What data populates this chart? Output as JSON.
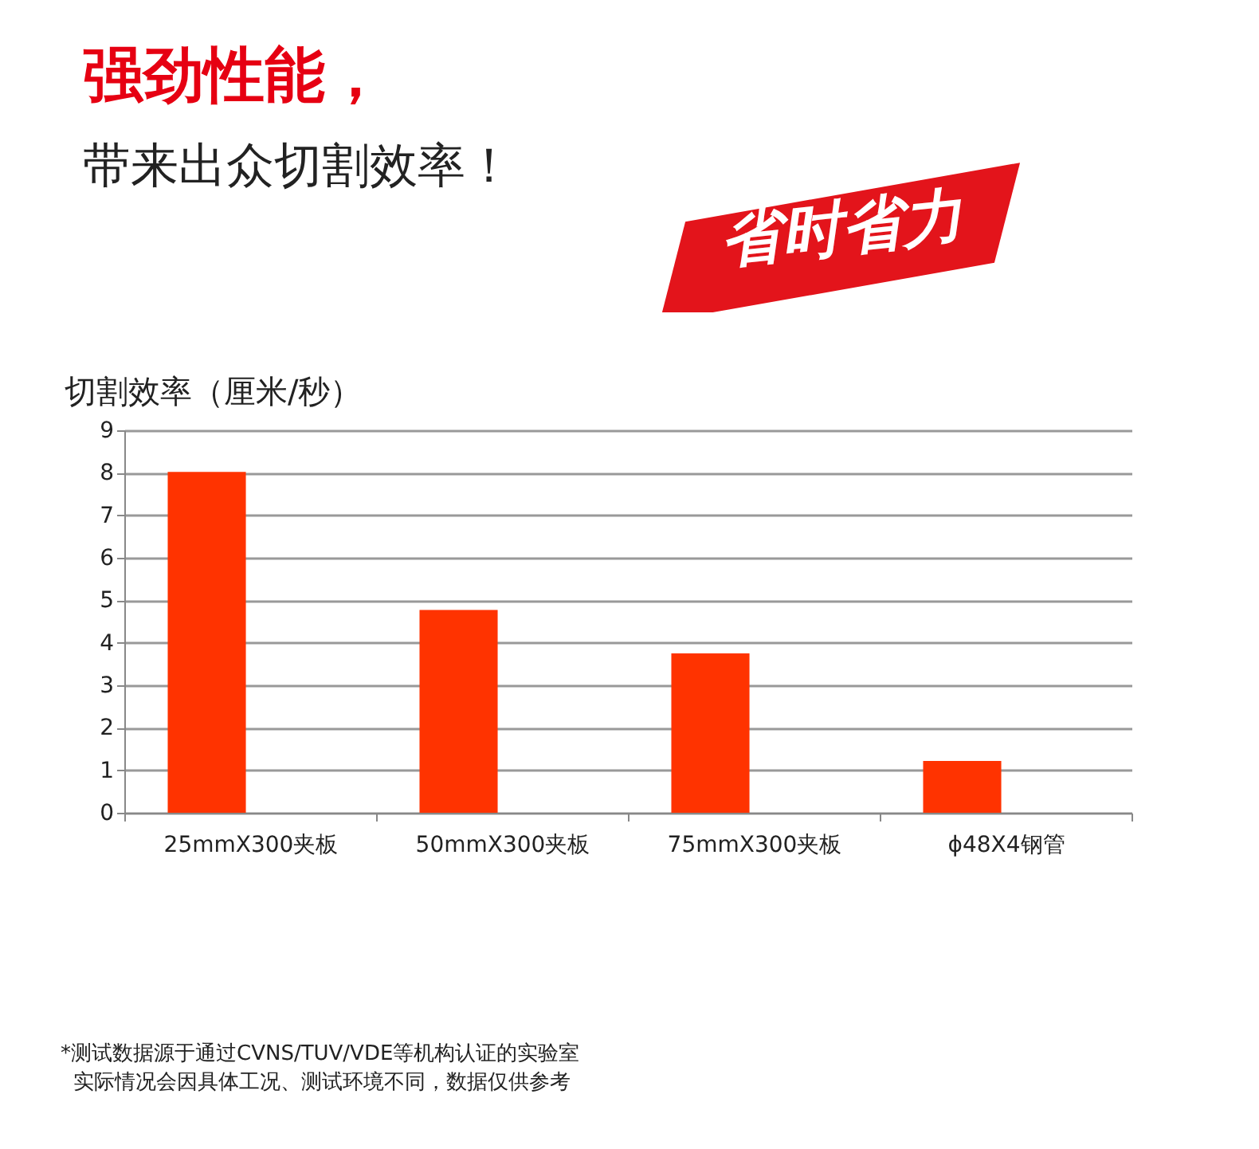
{
  "chart_data": {
    "type": "bar",
    "title": "强劲性能，",
    "subtitle": "带来出众切割效率！",
    "ylabel": "切割效率（厘米/秒）",
    "categories": [
      "25mmX300夹板",
      "50mmX300夹板",
      "75mmX300夹板",
      "ϕ48X4钢管"
    ],
    "series": [
      {
        "color": "#ff3300",
        "values": [
          8.02,
          4.77,
          3.75,
          1.22
        ]
      },
      {
        "color": "#a8bccb",
        "values": [
          0,
          0,
          0,
          0
        ]
      }
    ],
    "ylim": [
      0,
      9
    ],
    "yticks": [
      0,
      1,
      2,
      3,
      4,
      5,
      6,
      7,
      8,
      9
    ],
    "grid": "y",
    "annotations": [
      "省时省力",
      "*测试数据源于通过CVNS/TUV/VDE等机构认证的实验室",
      "实际情况会因具体工况、测试环境不同，数据仅供参考"
    ]
  }
}
